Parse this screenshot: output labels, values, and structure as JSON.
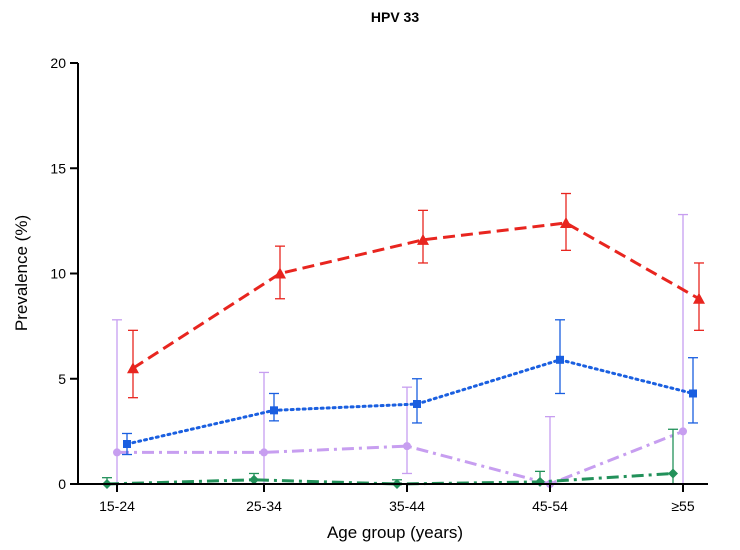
{
  "chart_data": {
    "type": "line",
    "title": "HPV 33",
    "xlabel": "Age group (years)",
    "ylabel": "Prevalence (%)",
    "categories": [
      "15-24",
      "25-34",
      "35-44",
      "45-54",
      "≥55"
    ],
    "ylim": [
      0,
      20
    ],
    "yticks": [
      "0",
      "5",
      "10",
      "15",
      "20"
    ],
    "grid": false,
    "series": [
      {
        "color": "#e8251f",
        "marker": "triangle",
        "dash": "dashed",
        "values": [
          5.5,
          10.0,
          11.6,
          12.4,
          8.8
        ],
        "err_low": [
          4.1,
          8.8,
          10.5,
          11.1,
          7.3
        ],
        "err_high": [
          7.3,
          11.3,
          13.0,
          13.8,
          10.5
        ]
      },
      {
        "color": "#1a5fe0",
        "marker": "square",
        "dash": "dotted",
        "values": [
          1.9,
          3.5,
          3.8,
          5.9,
          4.3
        ],
        "err_low": [
          1.4,
          3.0,
          2.9,
          4.3,
          2.9
        ],
        "err_high": [
          2.4,
          4.3,
          5.0,
          7.8,
          6.0
        ]
      },
      {
        "color": "#c79ef0",
        "marker": "circle",
        "dash": "dashdot",
        "values": [
          1.5,
          1.5,
          1.8,
          0.0,
          2.5
        ],
        "err_low": [
          0.0,
          0.0,
          0.5,
          0.0,
          0.0
        ],
        "err_high": [
          7.8,
          5.3,
          4.6,
          3.2,
          12.8
        ]
      },
      {
        "color": "#22915a",
        "marker": "diamond",
        "dash": "dashdot",
        "values": [
          0.0,
          0.2,
          0.0,
          0.1,
          0.5
        ],
        "err_low": [
          0.0,
          0.0,
          0.0,
          0.0,
          0.0
        ],
        "err_high": [
          0.3,
          0.5,
          0.2,
          0.6,
          2.6
        ]
      }
    ]
  }
}
